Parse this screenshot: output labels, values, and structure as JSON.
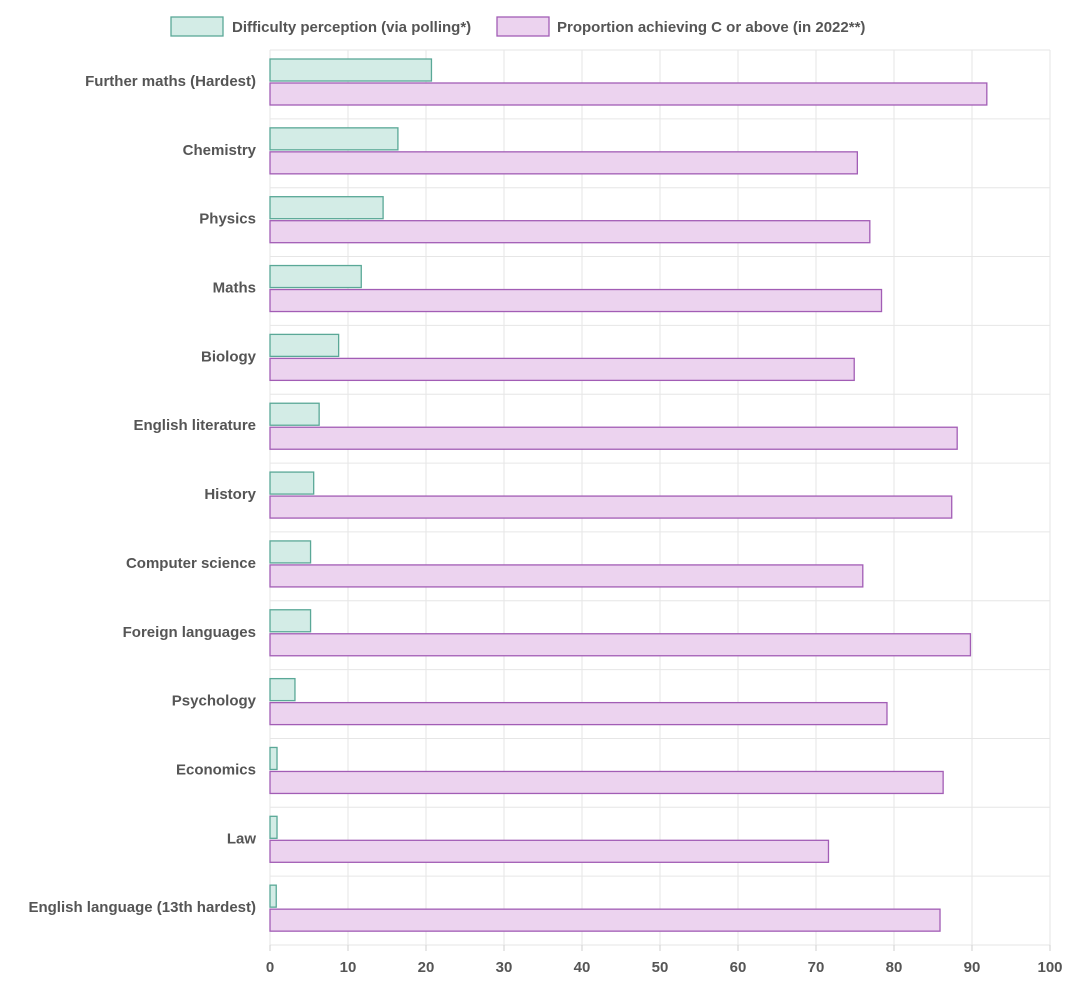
{
  "chart_data": {
    "type": "bar",
    "orientation": "horizontal",
    "title": "",
    "xlabel": "",
    "ylabel": "",
    "xlim": [
      0,
      100
    ],
    "xticks": [
      0,
      10,
      20,
      30,
      40,
      50,
      60,
      70,
      80,
      90,
      100
    ],
    "grid": true,
    "legend_position": "top-center",
    "categories": [
      "Further maths (Hardest)",
      "Chemistry",
      "Physics",
      "Maths",
      "Biology",
      "English literature",
      "History",
      "Computer science",
      "Foreign languages",
      "Psychology",
      "Economics",
      "Law",
      "English language (13th hardest)"
    ],
    "series": [
      {
        "name": "Difficulty perception (via polling*)",
        "fill": "#d3ece6",
        "stroke": "#5aa897",
        "values": [
          20.7,
          16.4,
          14.5,
          11.7,
          8.8,
          6.3,
          5.6,
          5.2,
          5.2,
          3.2,
          0.9,
          0.9,
          0.8
        ]
      },
      {
        "name": "Proportion achieving C or above (in 2022**)",
        "fill": "#ecd3ef",
        "stroke": "#a25db5",
        "values": [
          91.9,
          75.3,
          76.9,
          78.4,
          74.9,
          88.1,
          87.4,
          76.0,
          89.8,
          79.1,
          86.3,
          71.6,
          85.9
        ]
      }
    ]
  }
}
